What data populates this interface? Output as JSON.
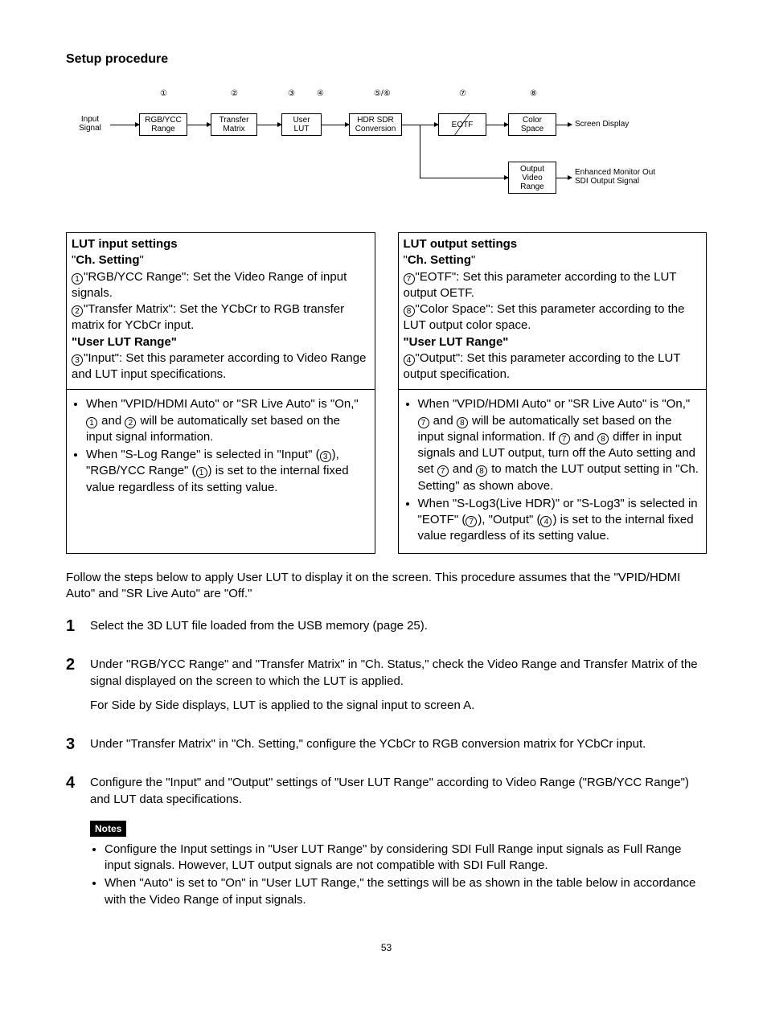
{
  "title": "Setup procedure",
  "diagram": {
    "input_label": "Input\nSignal",
    "boxes": {
      "b1": "RGB/YCC\nRange",
      "b2": "Transfer\nMatrix",
      "b3": "User\nLUT",
      "b4": "HDR SDR\nConversion",
      "b5": "EOTF",
      "b6": "Color\nSpace",
      "b7": "Output\nVideo\nRange"
    },
    "out1": "Screen Display",
    "out2": "Enhanced Monitor Out\nSDI Output Signal",
    "num1": "①",
    "num2": "②",
    "num3": "③",
    "num4": "④",
    "num56": "⑤/⑥",
    "num7": "⑦",
    "num8": "⑧"
  },
  "left": {
    "h1": "LUT input settings",
    "ch": "Ch. Setting",
    "l1": "\"RGB/YCC Range\": Set the Video Range of input signals.",
    "l2": "\"Transfer Matrix\": Set the YCbCr to RGB transfer matrix for YCbCr input.",
    "h2": "\"User LUT Range\"",
    "l3": "\"Input\": Set this parameter according to Video Range and LUT input specifications.",
    "b1a": "When \"VPID/HDMI Auto\" or \"SR Live Auto\" is \"On,\" ",
    "b1b": " and ",
    "b1c": " will be automatically set based on the input signal information.",
    "b2a": "When \"S-Log Range\" is selected in \"Input\" (",
    "b2b": "), \"RGB/YCC Range\" (",
    "b2c": ") is set to the internal fixed value regardless of its setting value."
  },
  "right": {
    "h1": "LUT output settings",
    "ch": "Ch. Setting",
    "l1": "\"EOTF\": Set this parameter according to the LUT output OETF.",
    "l2": "\"Color Space\": Set this parameter according to the LUT output color space.",
    "h2": "\"User LUT Range\"",
    "l3": "\"Output\": Set this parameter according to the LUT output specification.",
    "b1a": "When \"VPID/HDMI Auto\" or \"SR Live Auto\" is \"On,\" ",
    "b1b": " and ",
    "b1c": " will be automatically set based on the input signal information. If ",
    "b1d": " and ",
    "b1e": " differ in input signals and LUT output, turn off the Auto setting and set ",
    "b1f": " and ",
    "b1g": " to match the LUT output setting in \"Ch. Setting\" as shown above.",
    "b2a": "When \"S-Log3(Live HDR)\" or \"S-Log3\" is selected in \"EOTF\" (",
    "b2b": "), \"Output\" (",
    "b2c": ") is set to the internal fixed value regardless of its setting value."
  },
  "follow": "Follow the steps below to apply User LUT to display it on the screen. This procedure assumes that the \"VPID/HDMI Auto\" and \"SR Live Auto\" are \"Off.\"",
  "steps": {
    "s1": "Select the 3D LUT file loaded from the USB memory (page 25).",
    "s2a": "Under \"RGB/YCC Range\" and \"Transfer Matrix\" in \"Ch. Status,\" check the Video Range and Transfer Matrix of the signal displayed on the screen to which the LUT is applied.",
    "s2b": "For Side by Side displays, LUT is applied to the signal input to screen A.",
    "s3": "Under \"Transfer Matrix\" in \"Ch. Setting,\" configure the YCbCr to RGB conversion matrix for YCbCr input.",
    "s4": "Configure the \"Input\" and \"Output\" settings of \"User LUT Range\" according to Video Range (\"RGB/YCC Range\") and LUT data specifications.",
    "notes_label": "Notes",
    "n1": "Configure the Input settings in \"User LUT Range\" by considering SDI Full Range input signals as Full Range input signals. However, LUT output signals are not compatible with SDI Full Range.",
    "n2": "When \"Auto\" is set to \"On\" in \"User LUT Range,\" the settings will be as shown in the table below in accordance with the Video Range of input signals."
  },
  "pagenum": "53"
}
